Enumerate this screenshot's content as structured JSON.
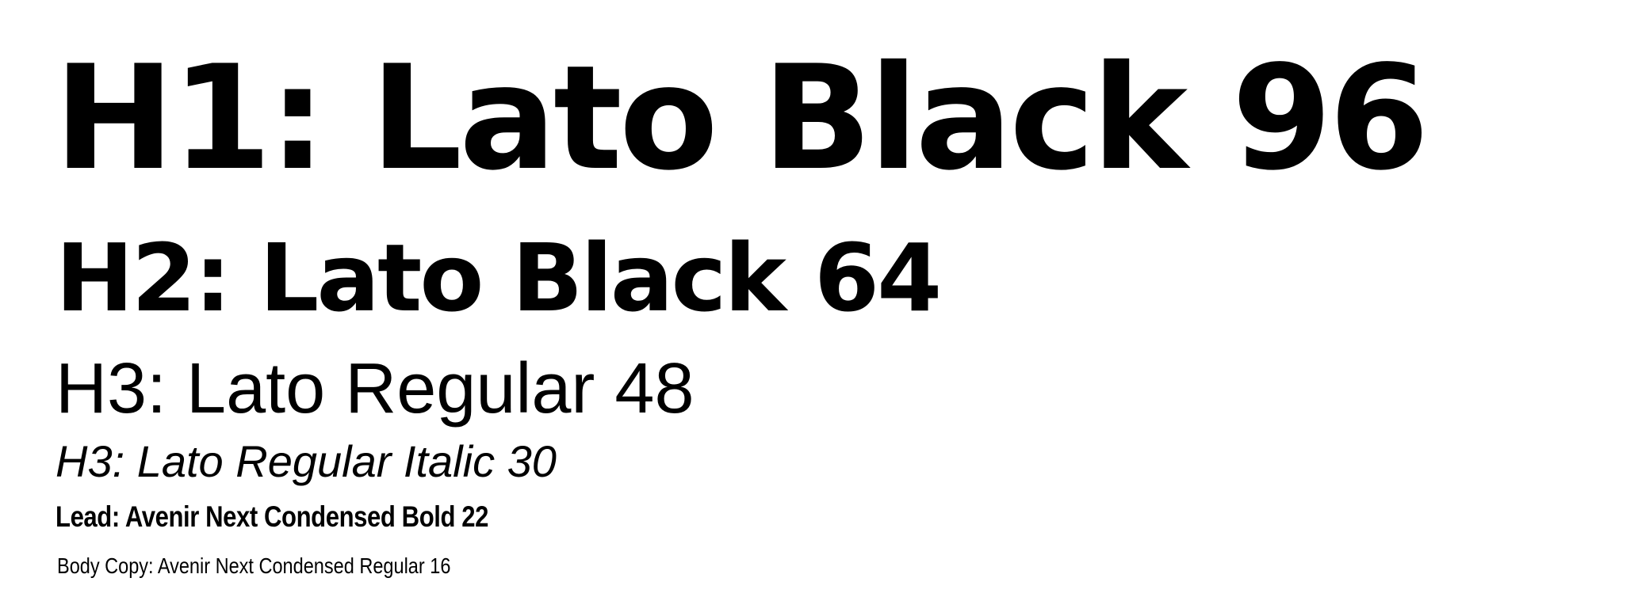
{
  "specimen": {
    "h1": "H1: Lato Black 96",
    "h2": "H2: Lato Black 64",
    "h3": "H3: Lato Regular 48",
    "h3_italic": "H3: Lato Regular Italic 30",
    "lead": "Lead: Avenir Next Condensed Bold 22",
    "body": "Body Copy: Avenir Next Condensed Regular 16"
  },
  "colors": {
    "background": "#ffffff",
    "text": "#000000"
  }
}
